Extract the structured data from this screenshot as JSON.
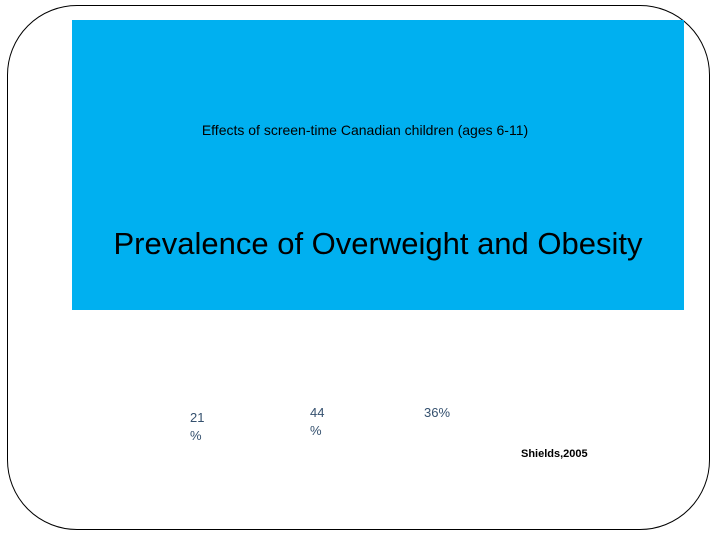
{
  "header": {
    "subtitle": "Effects of screen-time Canadian children (ages 6-11)",
    "title": "Prevalence of Overweight and Obesity"
  },
  "figures": [
    "21 %",
    "44 %",
    "36%"
  ],
  "citation": "Shields,2005"
}
